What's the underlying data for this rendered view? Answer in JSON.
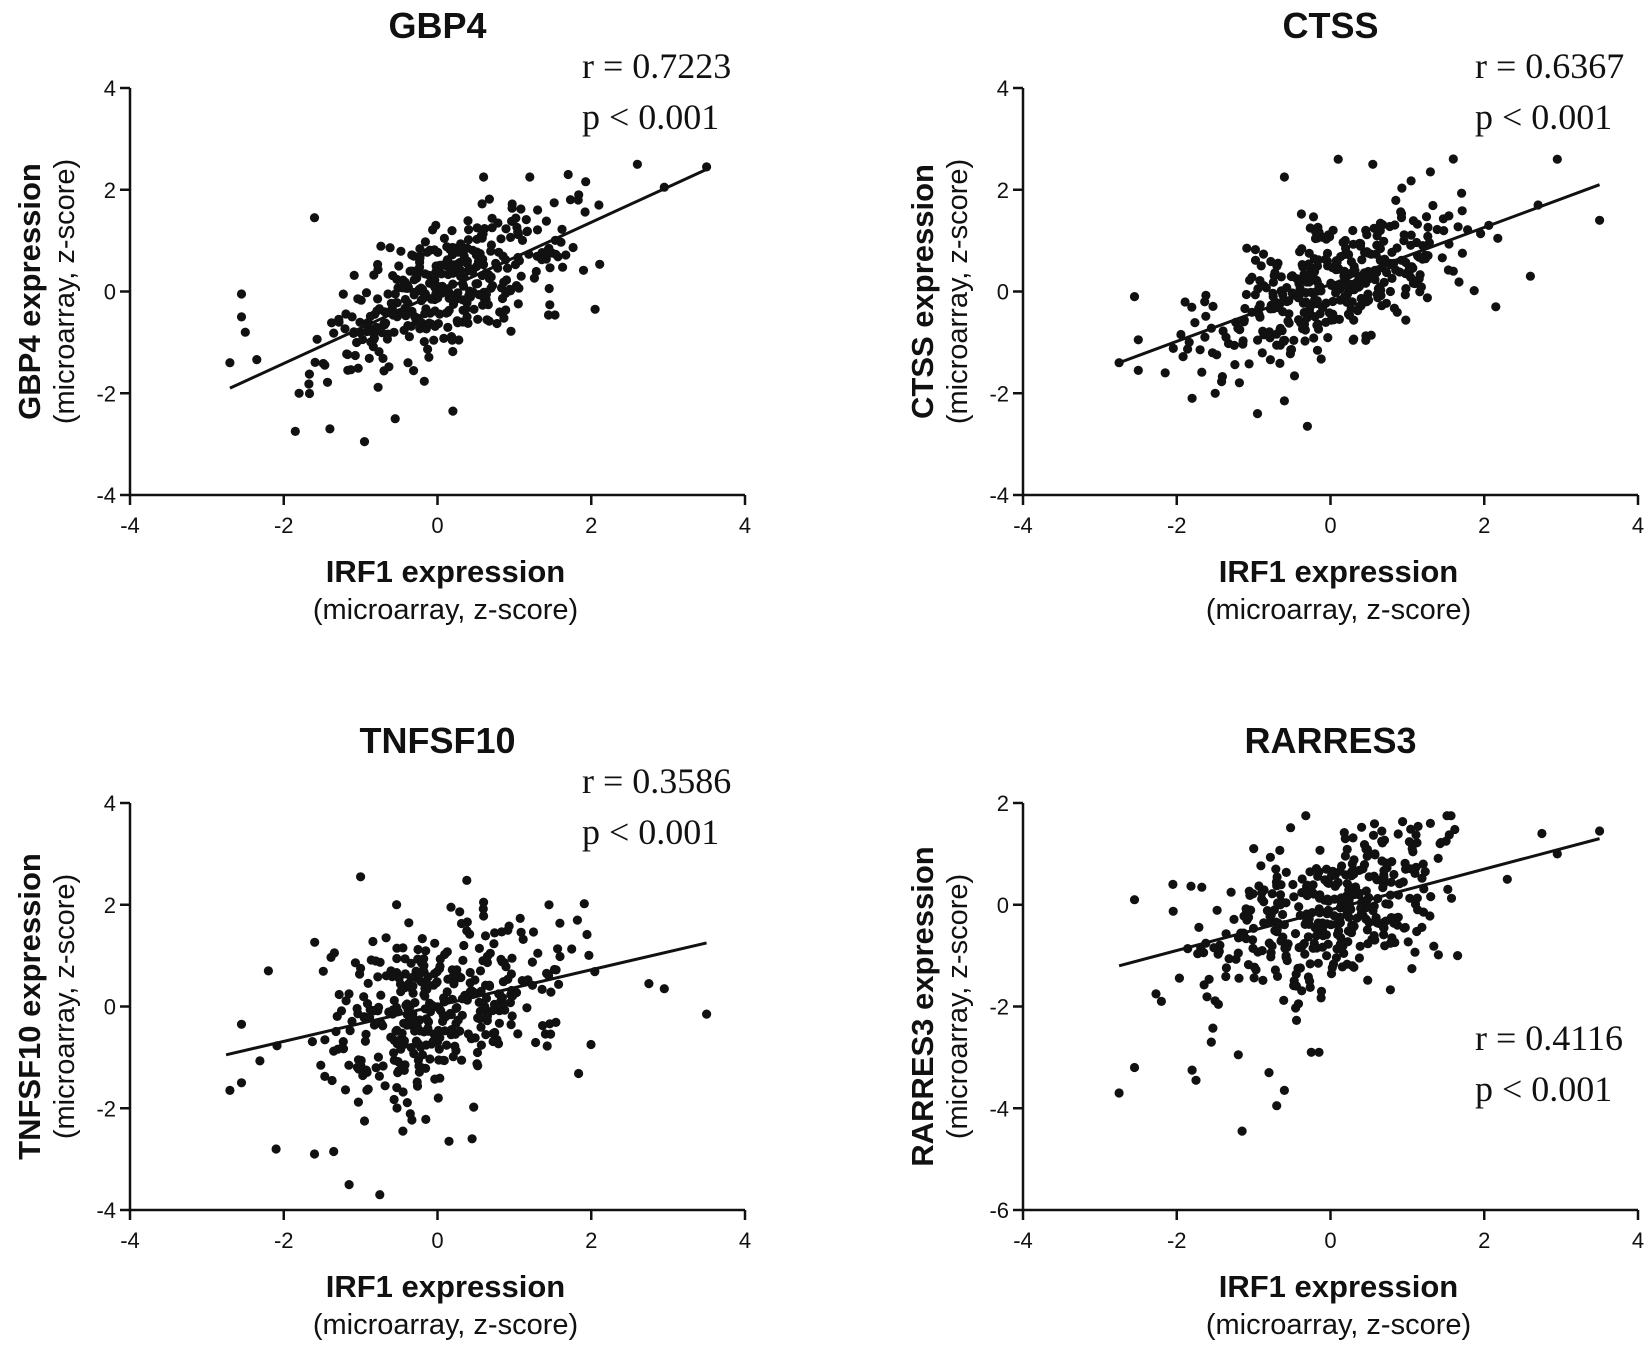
{
  "colors": {
    "ink": "#111111",
    "background": "#ffffff"
  },
  "chart_data": [
    {
      "type": "scatter",
      "title": "GBP4",
      "xlabel": "IRF1 expression",
      "xlabel_sub": "(microarray, z-score)",
      "ylabel": "GBP4 expression",
      "ylabel_sub": "(microarray, z-score)",
      "xlim": [
        -4,
        4
      ],
      "ylim": [
        -4,
        4
      ],
      "xticks": [
        -4,
        -2,
        0,
        2,
        4
      ],
      "yticks": [
        -4,
        -2,
        0,
        2,
        4
      ],
      "fit": {
        "x": [
          -2.7,
          3.5
        ],
        "y": [
          -1.9,
          2.4
        ]
      },
      "annotation": {
        "r": "r = 0.7223",
        "p": "p < 0.001",
        "position": "top-right"
      },
      "n_points": 380,
      "seed": 11,
      "noise": 0.65,
      "outliers": [
        [
          -2.7,
          -1.4
        ],
        [
          -2.55,
          -0.05
        ],
        [
          -2.55,
          -0.5
        ],
        [
          -2.5,
          -0.8
        ],
        [
          -1.85,
          -2.75
        ],
        [
          -1.6,
          1.45
        ],
        [
          -1.4,
          -2.7
        ],
        [
          -0.95,
          -2.95
        ],
        [
          -0.55,
          -2.5
        ],
        [
          0.2,
          -2.35
        ],
        [
          2.05,
          -0.35
        ],
        [
          2.6,
          2.5
        ],
        [
          2.95,
          2.05
        ],
        [
          3.5,
          2.45
        ],
        [
          0.6,
          2.25
        ],
        [
          1.2,
          2.25
        ],
        [
          1.7,
          2.3
        ],
        [
          2.1,
          1.7
        ],
        [
          -1.8,
          -2.0
        ]
      ]
    },
    {
      "type": "scatter",
      "title": "CTSS",
      "xlabel": "IRF1 expression",
      "xlabel_sub": "(microarray, z-score)",
      "ylabel": "CTSS expression",
      "ylabel_sub": "(microarray, z-score)",
      "xlim": [
        -4,
        4
      ],
      "ylim": [
        -4,
        4
      ],
      "xticks": [
        -4,
        -2,
        0,
        2,
        4
      ],
      "yticks": [
        -4,
        -2,
        0,
        2,
        4
      ],
      "fit": {
        "x": [
          -2.75,
          3.5
        ],
        "y": [
          -1.4,
          2.1
        ]
      },
      "annotation": {
        "r": "r = 0.6367",
        "p": "p < 0.001",
        "position": "top-right"
      },
      "n_points": 380,
      "seed": 23,
      "noise": 0.7,
      "outliers": [
        [
          -2.75,
          -1.4
        ],
        [
          -2.55,
          -0.1
        ],
        [
          -2.5,
          -0.95
        ],
        [
          -2.5,
          -1.55
        ],
        [
          -2.15,
          -1.6
        ],
        [
          -1.8,
          -2.1
        ],
        [
          -1.5,
          -2.0
        ],
        [
          -0.95,
          -2.4
        ],
        [
          -0.6,
          -2.15
        ],
        [
          -0.3,
          -2.65
        ],
        [
          -0.6,
          2.25
        ],
        [
          0.1,
          2.6
        ],
        [
          0.55,
          2.5
        ],
        [
          2.15,
          -0.3
        ],
        [
          2.6,
          0.3
        ],
        [
          2.95,
          2.6
        ],
        [
          3.5,
          1.4
        ],
        [
          2.7,
          1.7
        ],
        [
          1.3,
          2.35
        ]
      ]
    },
    {
      "type": "scatter",
      "title": "TNFSF10",
      "xlabel": "IRF1 expression",
      "xlabel_sub": "(microarray, z-score)",
      "ylabel": "TNFSF10 expression",
      "ylabel_sub": "(microarray, z-score)",
      "xlim": [
        -4,
        4
      ],
      "ylim": [
        -4,
        4
      ],
      "xticks": [
        -4,
        -2,
        0,
        2,
        4
      ],
      "yticks": [
        -4,
        -2,
        0,
        2,
        4
      ],
      "fit": {
        "x": [
          -2.75,
          3.5
        ],
        "y": [
          -0.95,
          1.25
        ]
      },
      "annotation": {
        "r": "r = 0.3586",
        "p": "p < 0.001",
        "position": "top-right"
      },
      "n_points": 380,
      "seed": 37,
      "noise": 0.95,
      "outliers": [
        [
          -2.7,
          -1.65
        ],
        [
          -2.55,
          -0.35
        ],
        [
          -2.55,
          -1.5
        ],
        [
          -2.2,
          0.7
        ],
        [
          -2.1,
          -2.8
        ],
        [
          -1.6,
          -2.9
        ],
        [
          -1.35,
          -2.85
        ],
        [
          -1.15,
          -3.5
        ],
        [
          -0.95,
          -2.25
        ],
        [
          -0.75,
          -3.7
        ],
        [
          -0.45,
          -2.45
        ],
        [
          0.15,
          -2.65
        ],
        [
          0.45,
          -2.6
        ],
        [
          -1.0,
          2.55
        ],
        [
          0.6,
          2.05
        ],
        [
          1.45,
          2.0
        ],
        [
          2.75,
          0.45
        ],
        [
          2.95,
          0.35
        ],
        [
          3.5,
          -0.15
        ]
      ]
    },
    {
      "type": "scatter",
      "title": "RARRES3",
      "xlabel": "IRF1 expression",
      "xlabel_sub": "(microarray, z-score)",
      "ylabel": "RARRES3 expression",
      "ylabel_sub": "(microarray, z-score)",
      "xlim": [
        -4,
        4
      ],
      "ylim": [
        -6,
        2
      ],
      "xticks": [
        -4,
        -2,
        0,
        2,
        4
      ],
      "yticks": [
        -6,
        -4,
        -2,
        0,
        2
      ],
      "fit": {
        "x": [
          -2.75,
          3.5
        ],
        "y": [
          -1.2,
          1.3
        ]
      },
      "annotation": {
        "r": "r = 0.4116",
        "p": "p < 0.001",
        "position": "bottom-right"
      },
      "n_points": 380,
      "seed": 53,
      "noise": 0.85,
      "outliers": [
        [
          -2.75,
          -3.7
        ],
        [
          -2.55,
          -3.2
        ],
        [
          -2.55,
          0.1
        ],
        [
          -2.2,
          -1.9
        ],
        [
          -1.8,
          -3.25
        ],
        [
          -1.75,
          -3.45
        ],
        [
          -1.55,
          -2.7
        ],
        [
          -1.2,
          -2.95
        ],
        [
          -1.15,
          -4.45
        ],
        [
          -0.8,
          -3.3
        ],
        [
          -0.7,
          -3.95
        ],
        [
          -0.6,
          -3.65
        ],
        [
          -0.25,
          -2.9
        ],
        [
          -0.15,
          -2.9
        ],
        [
          1.3,
          1.6
        ],
        [
          2.75,
          1.4
        ],
        [
          3.5,
          1.45
        ],
        [
          2.95,
          1.0
        ],
        [
          2.3,
          0.5
        ],
        [
          -2.05,
          0.4
        ]
      ]
    }
  ]
}
